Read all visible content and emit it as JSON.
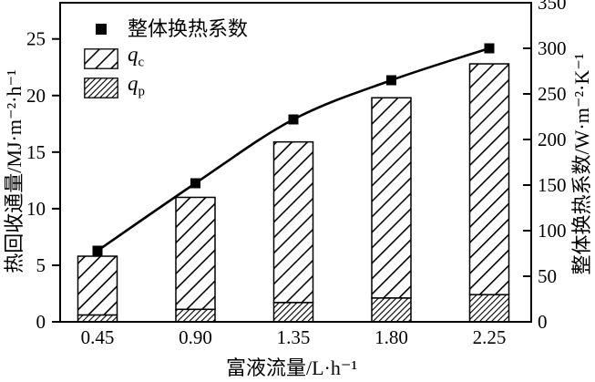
{
  "chart_data": {
    "type": "bar",
    "subtype": "stacked-hatched-bars-with-line-overlay",
    "categories": [
      "0.45",
      "0.90",
      "1.35",
      "1.80",
      "2.25"
    ],
    "xlabel": "富液流量/L·h⁻¹",
    "left_axis": {
      "label": "热回收通量/MJ·m⁻²·h⁻¹",
      "ticks": [
        0,
        5,
        10,
        15,
        20,
        25
      ],
      "range": [
        0,
        28.2
      ]
    },
    "right_axis": {
      "label": "整体换热系数/W·m⁻²·K⁻¹",
      "ticks": [
        0,
        50,
        100,
        150,
        200,
        250,
        300,
        350
      ],
      "range": [
        0,
        350
      ]
    },
    "series": [
      {
        "name": "q_p",
        "type": "bar",
        "axis": "left",
        "hatch": "dense-diagonal",
        "values": [
          0.6,
          1.1,
          1.7,
          2.1,
          2.4
        ]
      },
      {
        "name": "q_c",
        "type": "bar",
        "axis": "left",
        "hatch": "sparse-diagonal",
        "values": [
          5.2,
          9.9,
          14.2,
          17.7,
          20.4
        ]
      },
      {
        "name": "整体换热系数",
        "type": "line",
        "axis": "right",
        "marker": "filled-square",
        "values": [
          78,
          152,
          222,
          265,
          300
        ]
      }
    ],
    "bar_totals": [
      5.8,
      11.0,
      15.9,
      19.8,
      22.8
    ],
    "legend_position": "top-left",
    "grid": false,
    "foreground": "#000000",
    "background": "#ffffff"
  },
  "legend": {
    "coefficient_label": "整体换热系数",
    "qc": {
      "symbol": "q",
      "sub": "c"
    },
    "qp": {
      "symbol": "q",
      "sub": "p"
    }
  }
}
